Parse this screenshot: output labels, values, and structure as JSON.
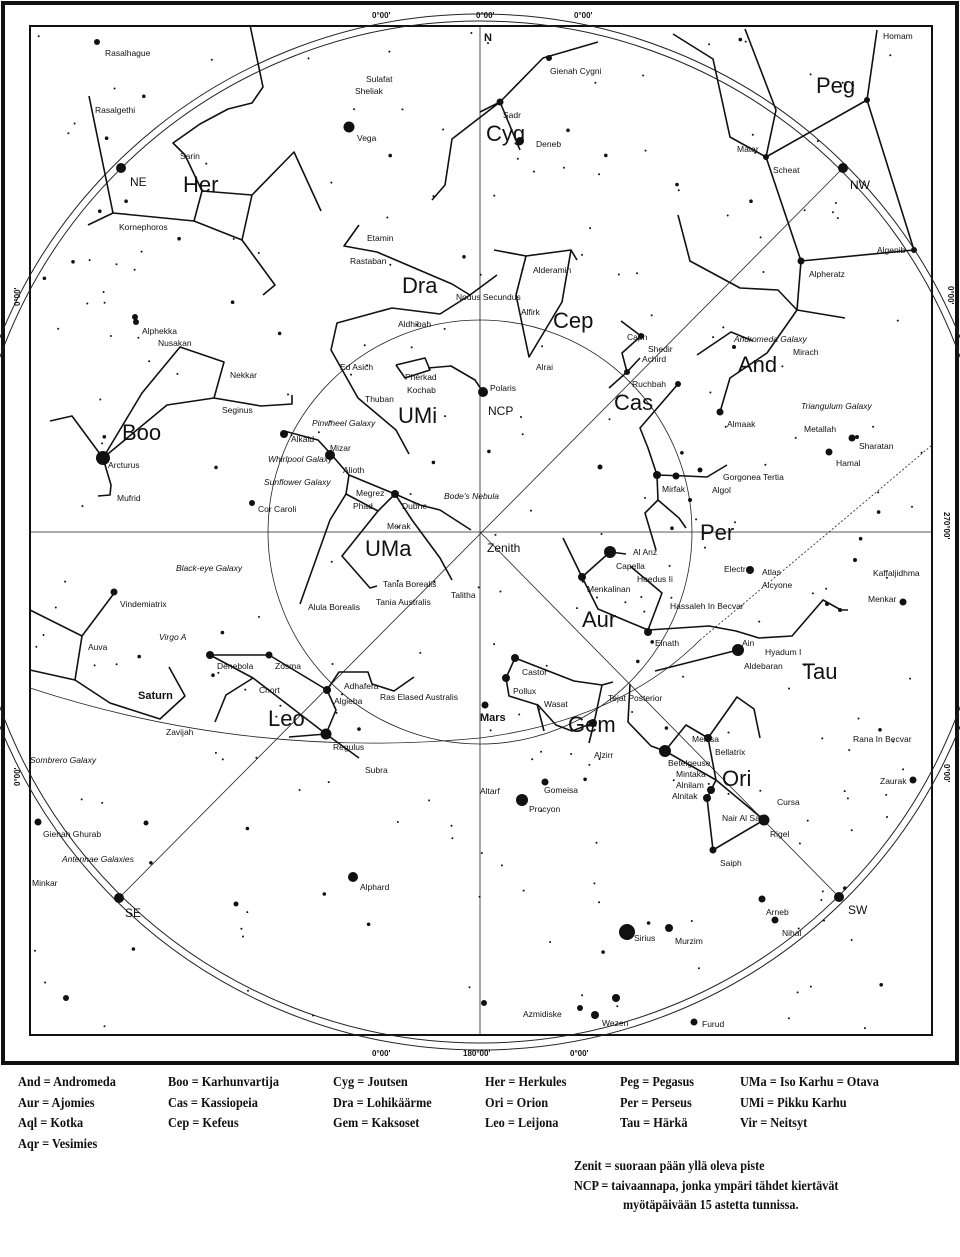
{
  "map": {
    "north_marker": "N",
    "directions": [
      "NE",
      "NW",
      "SE",
      "SW"
    ],
    "coordinate_ticks": [
      "0°00'",
      "0°00'",
      "0°00'",
      "0°00'",
      "0°00'",
      "270°00'",
      "0°00'",
      "0°00'",
      "0°00'",
      "180°00'",
      "0°00'"
    ],
    "reference_points": [
      "Zenith",
      "NCP"
    ],
    "constellations": [
      "Her",
      "Dra",
      "Boo",
      "UMi",
      "UMa",
      "Leo",
      "Cyg",
      "Cep",
      "Cas",
      "Peg",
      "And",
      "Per",
      "Aur",
      "Tau",
      "Gem",
      "Ori"
    ],
    "planets": [
      "Saturn",
      "Mars"
    ],
    "stars": [
      "Rasalhague",
      "Rasalgethi",
      "Sarin",
      "Kornephoros",
      "Sulafat",
      "Sheliak",
      "Vega",
      "Etamin",
      "Rastaban",
      "Nodus Secundus",
      "Aldhibah",
      "Ed Asich",
      "Thuban",
      "Pherkad",
      "Kochab",
      "Alphekka",
      "Nusakan",
      "Nekkar",
      "Seginus",
      "Arcturus",
      "Mufrid",
      "Alkaid",
      "Mizar",
      "Alioth",
      "Megrez",
      "Cor Caroli",
      "Phad",
      "Dubhe",
      "Merak",
      "Gienah Cygni",
      "Sadr",
      "Deneb",
      "Alderamin",
      "Alfirk",
      "Caph",
      "Shedir",
      "Achird",
      "Alrai",
      "Polaris",
      "Ruchbah",
      "Homam",
      "Matar",
      "Scheat",
      "Algenib",
      "Alpheratz",
      "Mirach",
      "Almaak",
      "Metallah",
      "Sharatan",
      "Hamal",
      "Mirfak",
      "Gorgonea Tertia",
      "Algol",
      "Vindemiatrix",
      "Auva",
      "Denebola",
      "Zosma",
      "Chort",
      "Zavijah",
      "Adhafera",
      "Algieba",
      "Ras Elased Australis",
      "Regulus",
      "Subra",
      "Gienah Ghurab",
      "Minkar",
      "Alphard",
      "Tania Borealis",
      "Tania Australis",
      "Talitha",
      "Alula Borealis",
      "Al Anz",
      "Capella",
      "Hoedus Ii",
      "Menkalinan",
      "Hassaleh In Becvar",
      "Elnath",
      "Electra",
      "Atlas",
      "Alcyone",
      "Kaffaljidhma",
      "Menkar",
      "Ain",
      "Hyadum I",
      "Aldebaran",
      "Castor",
      "Pollux",
      "Wasat",
      "Tejat Posterior",
      "Alzirr",
      "Meissa",
      "Bellatrix",
      "Betelgeuse",
      "Mintaka",
      "Alnilam",
      "Alnitak",
      "Cursa",
      "Nair Al Saif",
      "Rigel",
      "Saiph",
      "Altarf",
      "Gomeisa",
      "Procyon",
      "Rana In Becvar",
      "Zaurak",
      "Arneb",
      "Nihal",
      "Sirius",
      "Murzim",
      "Azmidiske",
      "Wezen",
      "Furud"
    ],
    "deep_sky": [
      "Pinwheel Galaxy",
      "Whirlpool Galaxy",
      "Sunflower Galaxy",
      "Bode's Nebula",
      "Andromeda Galaxy",
      "Triangulum Galaxy",
      "Black-eye Galaxy",
      "Virgo A",
      "Sombrero Galaxy",
      "Antennae Galaxies"
    ],
    "colors": {
      "ink": "#111111",
      "paper": "#ffffff"
    }
  },
  "legend": [
    [
      "And = Andromeda",
      "Aur = Ajomies",
      "Aql = Kotka",
      "Aqr = Vesimies"
    ],
    [
      "Boo = Karhunvartija",
      "Cas = Kassiopeia",
      "Cep = Kefeus"
    ],
    [
      "Cyg = Joutsen",
      "Dra = Lohikäärme",
      "Gem = Kaksoset"
    ],
    [
      "Her = Herkules",
      "Ori = Orion",
      "Leo = Leijona"
    ],
    [
      "Peg = Pegasus",
      "Per = Perseus",
      "Tau = Härkä"
    ],
    [
      "UMa = Iso Karhu = Otava",
      "UMi = Pikku Karhu",
      "Vir  = Neitsyt"
    ]
  ],
  "notes": [
    "Zenit = suoraan pään yllä oleva piste",
    "NCP = taivaannapa, jonka ympäri tähdet kiertävät",
    "myötäpäivään 15 astetta tunnissa."
  ]
}
